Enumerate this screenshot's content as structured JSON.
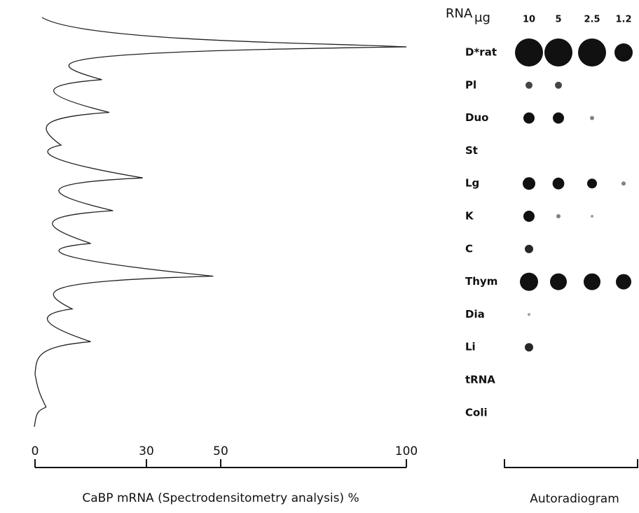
{
  "chart_data": [
    {
      "type": "trace",
      "x_label": "CaBP mRNA (Spectrodensitometry analysis) %",
      "xlim": [
        0,
        100
      ],
      "xticks": [
        0,
        30,
        50,
        100
      ],
      "values": [
        100,
        18,
        20,
        7,
        29,
        21,
        15,
        48,
        10,
        15,
        0,
        3
      ],
      "color": "#222222"
    },
    {
      "type": "dotblot",
      "title": "RNA",
      "unit": "μg",
      "columns": [
        10,
        5,
        2.5,
        1.2
      ],
      "categories": [
        "D*rat",
        "Pl",
        "Duo",
        "St",
        "Lg",
        "K",
        "C",
        "Thym",
        "Dia",
        "Li",
        "tRNA",
        "Coli"
      ],
      "signal": [
        [
          1,
          1,
          1,
          0.65
        ],
        [
          0.25,
          0.25,
          0,
          0
        ],
        [
          0.4,
          0.4,
          0.15,
          0
        ],
        [
          0,
          0,
          0,
          0
        ],
        [
          0.45,
          0.42,
          0.35,
          0.15
        ],
        [
          0.4,
          0.15,
          0.1,
          0
        ],
        [
          0.3,
          0,
          0,
          0
        ],
        [
          0.65,
          0.6,
          0.6,
          0.55
        ],
        [
          0.1,
          0,
          0,
          0
        ],
        [
          0.3,
          0,
          0,
          0
        ],
        [
          0,
          0,
          0,
          0
        ],
        [
          0,
          0,
          0,
          0
        ]
      ],
      "x_label": "Autoradiogram",
      "color": "#111111"
    }
  ]
}
